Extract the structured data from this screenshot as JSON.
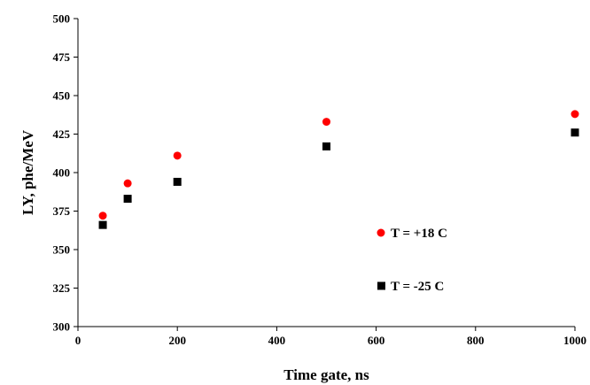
{
  "chart_data": {
    "type": "scatter",
    "title": "",
    "xlabel": "Time gate, ns",
    "ylabel": "LY, phe/MeV",
    "xlim": [
      0,
      1000
    ],
    "ylim": [
      300,
      500
    ],
    "xticks": [
      "0",
      "200",
      "400",
      "600",
      "800",
      "1000"
    ],
    "yticks": [
      "300",
      "325",
      "350",
      "375",
      "400",
      "425",
      "450",
      "475",
      "500"
    ],
    "grid": false,
    "legend_position": "inside-right",
    "series": [
      {
        "name": "T = +18 C",
        "marker": "circle",
        "color": "#ff0000",
        "x": [
          50,
          100,
          200,
          500,
          1000
        ],
        "y": [
          372,
          393,
          411,
          433,
          438
        ]
      },
      {
        "name": "T = -25 C",
        "marker": "square",
        "color": "#000000",
        "x": [
          50,
          100,
          200,
          500,
          1000
        ],
        "y": [
          366,
          383,
          394,
          417,
          426
        ]
      }
    ]
  }
}
